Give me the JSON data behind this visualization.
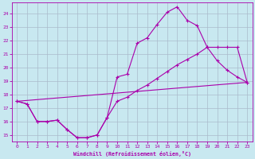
{
  "xlabel": "Windchill (Refroidissement éolien,°C)",
  "background_color": "#c8e8f0",
  "grid_color": "#aabbcc",
  "line_color": "#aa00aa",
  "xlim": [
    -0.5,
    23.5
  ],
  "ylim": [
    14.5,
    24.8
  ],
  "yticks": [
    15,
    16,
    17,
    18,
    19,
    20,
    21,
    22,
    23,
    24
  ],
  "xticks": [
    0,
    1,
    2,
    3,
    4,
    5,
    6,
    7,
    8,
    9,
    10,
    11,
    12,
    13,
    14,
    15,
    16,
    17,
    18,
    19,
    20,
    21,
    22,
    23
  ],
  "line1_x": [
    0,
    1,
    2,
    3,
    4,
    5,
    6,
    7,
    8,
    9,
    10,
    11,
    12,
    13,
    14,
    15,
    16,
    17,
    18,
    19,
    20,
    21,
    22,
    23
  ],
  "line1_y": [
    17.5,
    17.3,
    16.0,
    16.0,
    16.1,
    15.4,
    14.8,
    14.8,
    15.0,
    16.3,
    19.3,
    19.5,
    21.8,
    22.2,
    23.2,
    24.1,
    24.5,
    23.5,
    23.1,
    21.5,
    20.5,
    19.8,
    19.3,
    18.9
  ],
  "line2_x": [
    0,
    1,
    2,
    3,
    4,
    5,
    6,
    7,
    8,
    9,
    10,
    11,
    12,
    13,
    14,
    15,
    16,
    17,
    18,
    19,
    20,
    21,
    22,
    23
  ],
  "line2_y": [
    17.5,
    17.3,
    16.0,
    16.0,
    16.1,
    15.4,
    14.8,
    14.8,
    15.0,
    16.3,
    17.5,
    17.8,
    18.3,
    18.7,
    19.2,
    19.7,
    20.2,
    20.6,
    21.0,
    21.5,
    21.5,
    21.5,
    21.5,
    18.9
  ],
  "line3_x": [
    0,
    23
  ],
  "line3_y": [
    17.5,
    18.9
  ]
}
